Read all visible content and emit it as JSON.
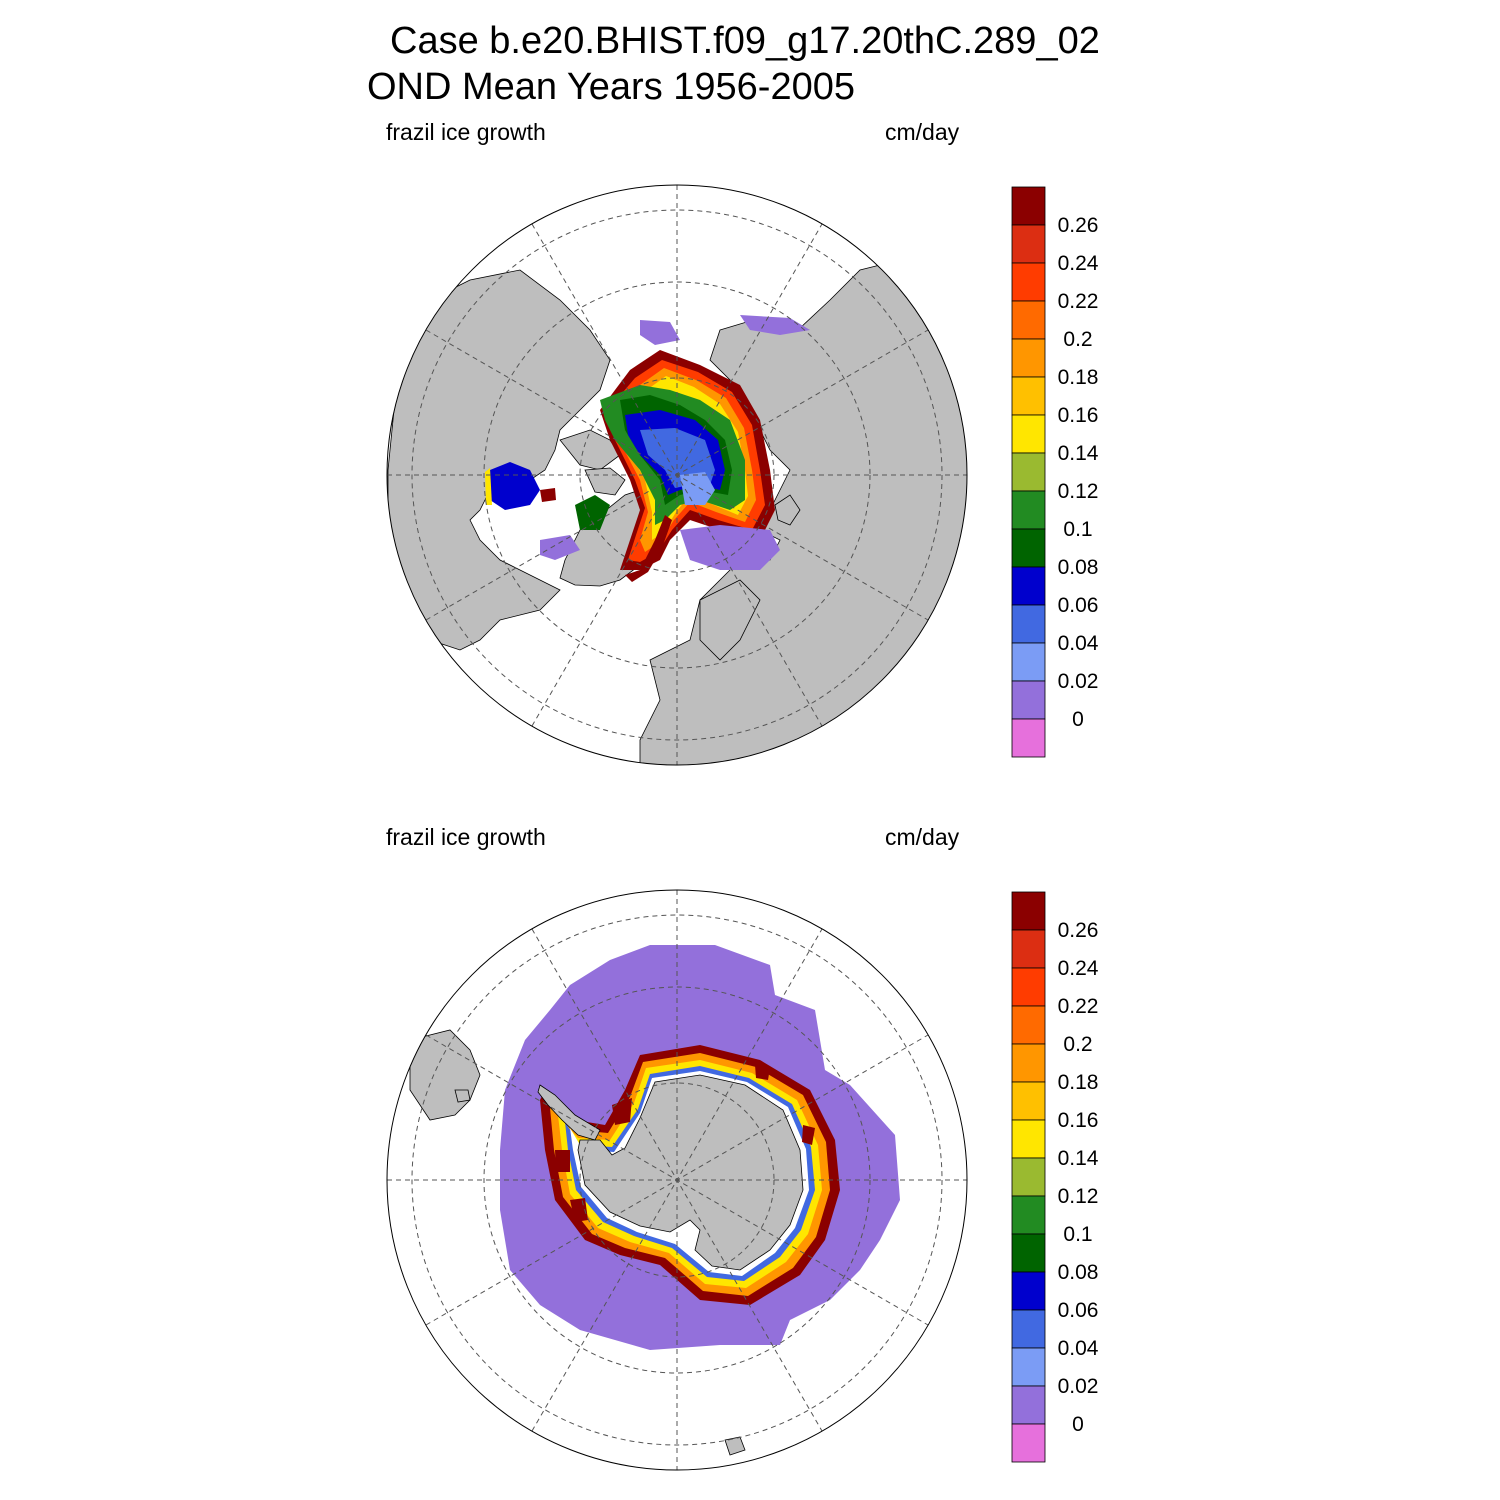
{
  "title_line1": "Case b.e20.BHIST.f09_g17.20thC.289_02",
  "title_line2": "OND Mean   Years 1956-2005",
  "panels": [
    {
      "variable": "frazil ice growth",
      "units": "cm/day"
    },
    {
      "variable": "frazil ice growth",
      "units": "cm/day"
    }
  ],
  "colorbar": {
    "labels": [
      "0.26",
      "0.24",
      "0.22",
      "0.2",
      "0.18",
      "0.16",
      "0.14",
      "0.12",
      "0.1",
      "0.08",
      "0.06",
      "0.04",
      "0.02",
      "0"
    ],
    "colors_top_to_bottom": [
      "#8b0000",
      "#dc2e12",
      "#ff3c00",
      "#ff6a00",
      "#ff9600",
      "#ffc000",
      "#ffe600",
      "#9aba30",
      "#228b22",
      "#006400",
      "#0000cd",
      "#4169e1",
      "#7b9cf5",
      "#9370db",
      "#e670dc"
    ]
  },
  "colors": {
    "land": "#bebebe",
    "coast": "#000000",
    "grid": "#555555"
  }
}
